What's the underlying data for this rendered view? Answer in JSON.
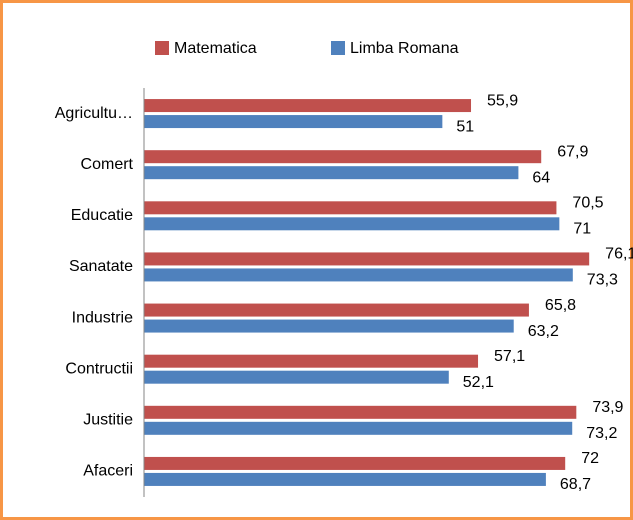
{
  "chart_data": {
    "type": "hbar",
    "categories": [
      "Agricultu…",
      "Comert",
      "Educatie",
      "Sanatate",
      "Industrie",
      "Contructii",
      "Justitie",
      "Afaceri"
    ],
    "series": [
      {
        "name": "Matematica",
        "color": "#c0504d",
        "values": [
          55.9,
          67.9,
          70.5,
          76.1,
          65.8,
          57.1,
          73.9,
          72
        ],
        "value_labels": [
          "55,9",
          "67,9",
          "70,5",
          "76,1",
          "65,8",
          "57,1",
          "73,9",
          "72"
        ]
      },
      {
        "name": "Limba Romana",
        "color": "#4f81bd",
        "values": [
          51,
          64,
          71,
          73.3,
          63.2,
          52.1,
          73.2,
          68.7
        ],
        "value_labels": [
          "51",
          "64",
          "71",
          "73,3",
          "63,2",
          "52,1",
          "73,2",
          "68,7"
        ]
      }
    ],
    "xlim": [
      0,
      80
    ],
    "legend": "top"
  }
}
